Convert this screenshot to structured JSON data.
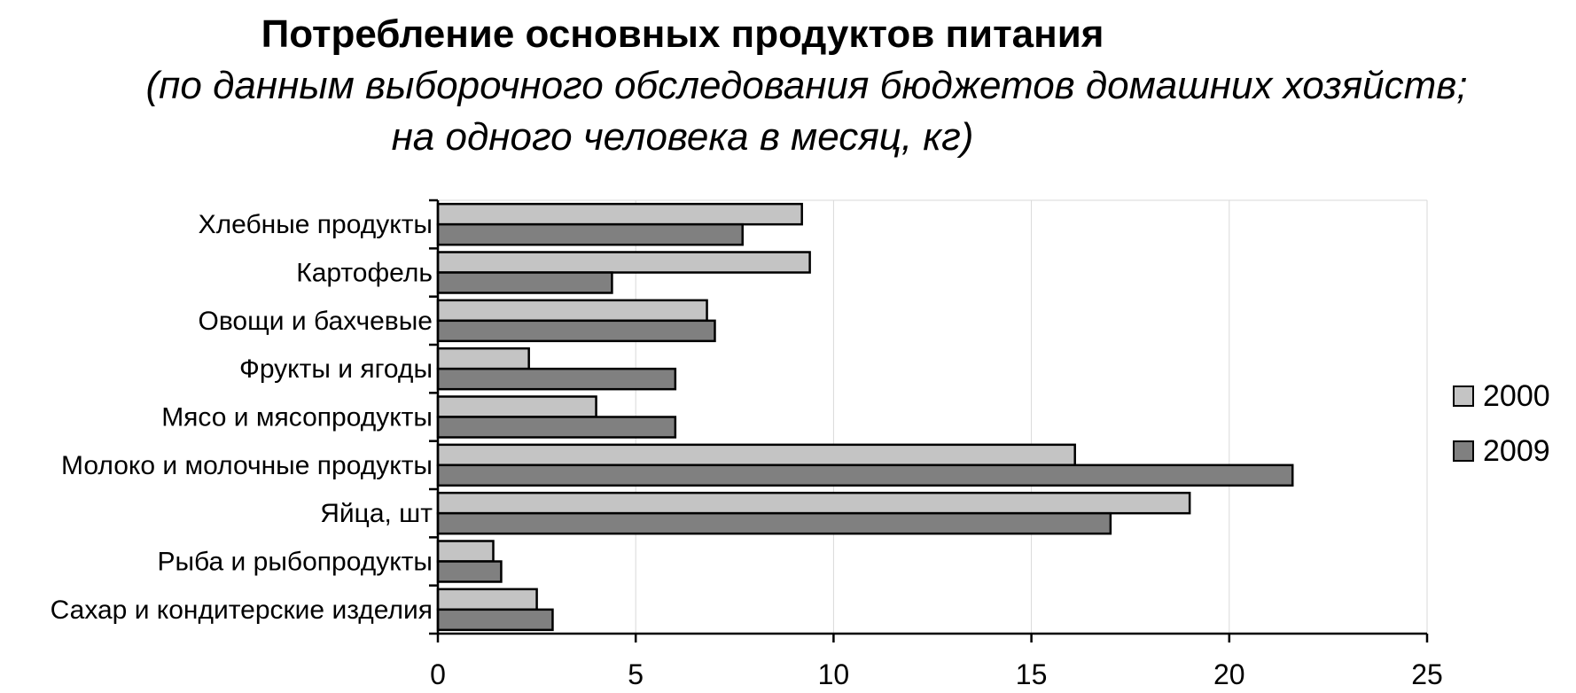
{
  "chart_data": {
    "type": "bar",
    "orientation": "horizontal",
    "title": "Потребление основных продуктов питания",
    "subtitle_line1": "(по данным выборочного обследования бюджетов домашних хозяйств;",
    "subtitle_line2": "на одного человека в месяц, кг)",
    "categories": [
      "Хлебные продукты",
      "Картофель",
      "Овощи и бахчевые",
      "Фрукты и ягоды",
      "Мясо и мясопродукты",
      "Молоко и молочные продукты",
      "Яйца, шт",
      "Рыба и рыбопродукты",
      "Сахар и кондитерские изделия"
    ],
    "series": [
      {
        "name": "2000",
        "color": "#c4c4c4",
        "values": [
          9.2,
          9.4,
          6.8,
          2.3,
          4.0,
          16.1,
          19.0,
          1.4,
          2.5
        ]
      },
      {
        "name": "2009",
        "color": "#808080",
        "values": [
          7.7,
          4.4,
          7.0,
          6.0,
          6.0,
          21.6,
          17.0,
          1.6,
          2.9
        ]
      }
    ],
    "xlim": [
      0,
      25
    ],
    "xticks": [
      "0",
      "5",
      "10",
      "15",
      "20",
      "25"
    ],
    "grid": true,
    "legend": "right"
  }
}
